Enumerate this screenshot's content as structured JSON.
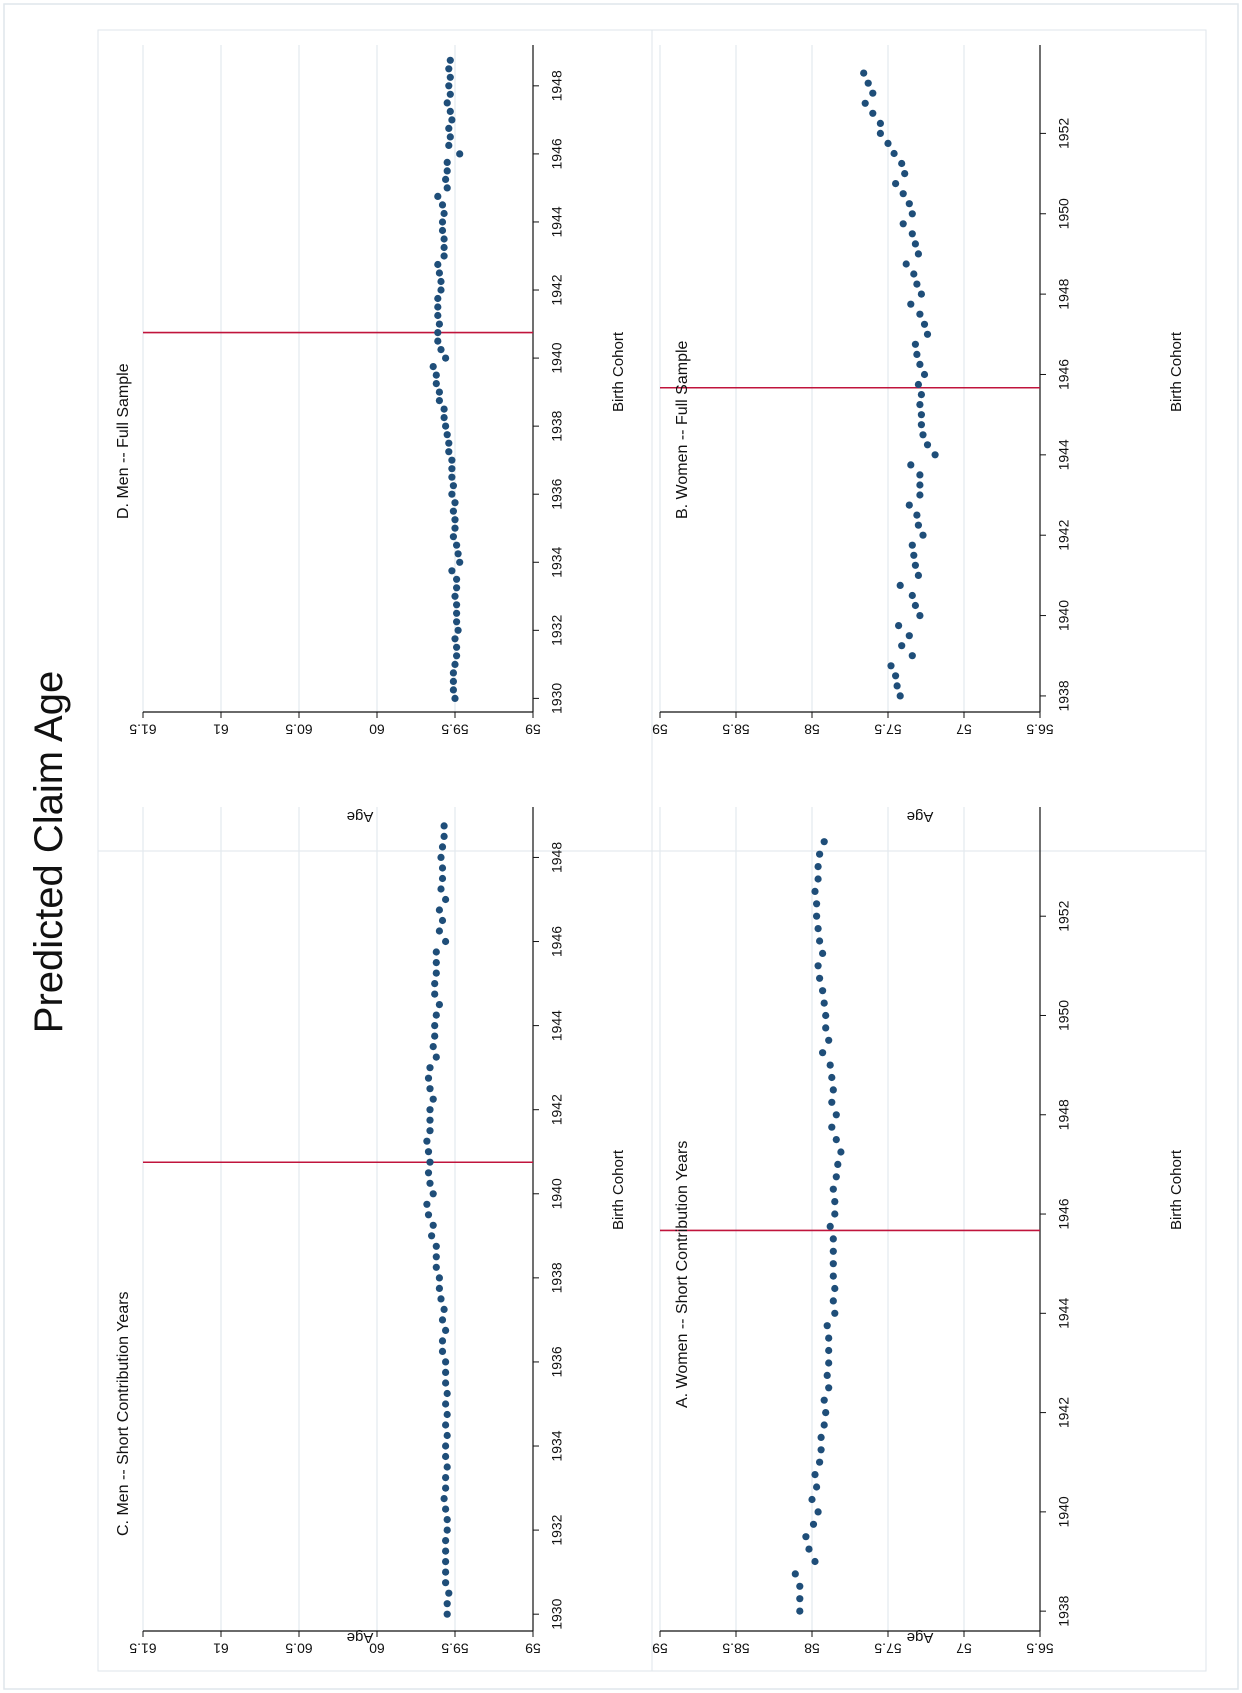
{
  "figure": {
    "title": "Predicted Claim Age",
    "colors": {
      "marker": "#1f4e79",
      "cutoff_line": "#c0143c",
      "grid": "#e3e9ee",
      "axis": "#111111",
      "frame": "#dfe6eb"
    }
  },
  "chart_data": [
    {
      "type": "scatter",
      "panel": "C",
      "title": "C. Men -- Short Contribution Years",
      "xlabel": "Birth Cohort",
      "ylabel": "Age",
      "xlim": [
        1929.6,
        1949.2
      ],
      "ylim": [
        59,
        61.5
      ],
      "xticks": [
        1930,
        1932,
        1934,
        1936,
        1938,
        1940,
        1942,
        1944,
        1946,
        1948
      ],
      "yticks": [
        59,
        59.5,
        60,
        60.5,
        61,
        61.5
      ],
      "ytick_labels": [
        "59",
        "59.5",
        "60",
        "60.5",
        "61",
        "61.5"
      ],
      "cutoff_x": 1940.75,
      "grid": true,
      "x": [
        1930.0,
        1930.25,
        1930.5,
        1930.75,
        1931.0,
        1931.25,
        1931.5,
        1931.75,
        1932.0,
        1932.25,
        1932.5,
        1932.75,
        1933.0,
        1933.25,
        1933.5,
        1933.75,
        1934.0,
        1934.25,
        1934.5,
        1934.75,
        1935.0,
        1935.25,
        1935.5,
        1935.75,
        1936.0,
        1936.25,
        1936.5,
        1936.75,
        1937.0,
        1937.25,
        1937.5,
        1937.75,
        1938.0,
        1938.25,
        1938.5,
        1938.75,
        1939.0,
        1939.25,
        1939.5,
        1939.75,
        1940.0,
        1940.25,
        1940.5,
        1940.75,
        1941.0,
        1941.25,
        1941.5,
        1941.75,
        1942.0,
        1942.25,
        1942.5,
        1942.75,
        1943.0,
        1943.25,
        1943.5,
        1943.75,
        1944.0,
        1944.25,
        1944.5,
        1944.75,
        1945.0,
        1945.25,
        1945.5,
        1945.75,
        1946.0,
        1946.25,
        1946.5,
        1946.75,
        1947.0,
        1947.25,
        1947.5,
        1947.75,
        1948.0,
        1948.25,
        1948.5,
        1948.75
      ],
      "y": [
        59.55,
        59.55,
        59.54,
        59.56,
        59.56,
        59.56,
        59.56,
        59.56,
        59.55,
        59.55,
        59.56,
        59.57,
        59.56,
        59.56,
        59.55,
        59.56,
        59.56,
        59.55,
        59.56,
        59.55,
        59.56,
        59.55,
        59.56,
        59.56,
        59.56,
        59.58,
        59.58,
        59.56,
        59.58,
        59.57,
        59.59,
        59.6,
        59.6,
        59.62,
        59.62,
        59.62,
        59.65,
        59.64,
        59.67,
        59.68,
        59.64,
        59.66,
        59.67,
        59.66,
        59.67,
        59.68,
        59.66,
        59.66,
        59.66,
        59.64,
        59.66,
        59.67,
        59.66,
        59.62,
        59.64,
        59.63,
        59.63,
        59.62,
        59.6,
        59.63,
        59.63,
        59.62,
        59.62,
        59.62,
        59.56,
        59.6,
        59.58,
        59.6,
        59.56,
        59.59,
        59.58,
        59.58,
        59.59,
        59.58,
        59.57,
        59.57
      ]
    },
    {
      "type": "scatter",
      "panel": "D",
      "title": "D. Men -- Full Sample",
      "xlabel": "Birth Cohort",
      "ylabel": "Age",
      "xlim": [
        1929.6,
        1949.2
      ],
      "ylim": [
        59,
        61.5
      ],
      "xticks": [
        1930,
        1932,
        1934,
        1936,
        1938,
        1940,
        1942,
        1944,
        1946,
        1948
      ],
      "yticks": [
        59,
        59.5,
        60,
        60.5,
        61,
        61.5
      ],
      "ytick_labels": [
        "59",
        "59.5",
        "60",
        "60.5",
        "61",
        "61.5"
      ],
      "cutoff_x": 1940.75,
      "grid": true,
      "x": [
        1930.0,
        1930.25,
        1930.5,
        1930.75,
        1931.0,
        1931.25,
        1931.5,
        1931.75,
        1932.0,
        1932.25,
        1932.5,
        1932.75,
        1933.0,
        1933.25,
        1933.5,
        1933.75,
        1934.0,
        1934.25,
        1934.5,
        1934.75,
        1935.0,
        1935.25,
        1935.5,
        1935.75,
        1936.0,
        1936.25,
        1936.5,
        1936.75,
        1937.0,
        1937.25,
        1937.5,
        1937.75,
        1938.0,
        1938.25,
        1938.5,
        1938.75,
        1939.0,
        1939.25,
        1939.5,
        1939.75,
        1940.0,
        1940.25,
        1940.5,
        1940.75,
        1941.0,
        1941.25,
        1941.5,
        1941.75,
        1942.0,
        1942.25,
        1942.5,
        1942.75,
        1943.0,
        1943.25,
        1943.5,
        1943.75,
        1944.0,
        1944.25,
        1944.5,
        1944.75,
        1945.0,
        1945.25,
        1945.5,
        1945.75,
        1946.0,
        1946.25,
        1946.5,
        1946.75,
        1947.0,
        1947.25,
        1947.5,
        1947.75,
        1948.0,
        1948.25,
        1948.5,
        1948.75
      ],
      "y": [
        59.5,
        59.51,
        59.51,
        59.51,
        59.5,
        59.49,
        59.49,
        59.5,
        59.48,
        59.49,
        59.49,
        59.49,
        59.5,
        59.49,
        59.49,
        59.52,
        59.47,
        59.48,
        59.49,
        59.51,
        59.5,
        59.5,
        59.51,
        59.5,
        59.52,
        59.51,
        59.52,
        59.52,
        59.52,
        59.54,
        59.54,
        59.55,
        59.56,
        59.57,
        59.57,
        59.6,
        59.6,
        59.62,
        59.62,
        59.64,
        59.56,
        59.59,
        59.61,
        59.61,
        59.6,
        59.61,
        59.61,
        59.61,
        59.59,
        59.59,
        59.6,
        59.61,
        59.57,
        59.57,
        59.57,
        59.58,
        59.58,
        59.57,
        59.58,
        59.61,
        59.55,
        59.56,
        59.55,
        59.55,
        59.47,
        59.54,
        59.53,
        59.54,
        59.52,
        59.53,
        59.55,
        59.53,
        59.54,
        59.53,
        59.54,
        59.53
      ]
    },
    {
      "type": "scatter",
      "panel": "A",
      "title": "A. Women -- Short Contribution Years",
      "xlabel": "Birth Cohort",
      "ylabel": "Age",
      "xlim": [
        1937.6,
        1954.2
      ],
      "ylim": [
        56.5,
        59
      ],
      "xticks": [
        1938,
        1940,
        1942,
        1944,
        1946,
        1948,
        1950,
        1952
      ],
      "yticks": [
        56.5,
        57,
        57.5,
        58,
        58.5,
        59
      ],
      "ytick_labels": [
        "56.5",
        "57",
        "57.5",
        "58",
        "58.5",
        "59"
      ],
      "cutoff_x": 1945.67,
      "grid": true,
      "x": [
        1938.0,
        1938.25,
        1938.5,
        1938.75,
        1939.0,
        1939.25,
        1939.5,
        1939.75,
        1940.0,
        1940.25,
        1940.5,
        1940.75,
        1941.0,
        1941.25,
        1941.5,
        1941.75,
        1942.0,
        1942.25,
        1942.5,
        1942.75,
        1943.0,
        1943.25,
        1943.5,
        1943.75,
        1944.0,
        1944.25,
        1944.5,
        1944.75,
        1945.0,
        1945.25,
        1945.5,
        1945.75,
        1946.0,
        1946.25,
        1946.5,
        1946.75,
        1947.0,
        1947.25,
        1947.5,
        1947.75,
        1948.0,
        1948.25,
        1948.5,
        1948.75,
        1949.0,
        1949.25,
        1949.5,
        1949.75,
        1950.0,
        1950.25,
        1950.5,
        1950.75,
        1951.0,
        1951.25,
        1951.5,
        1951.75,
        1952.0,
        1952.25,
        1952.5,
        1952.75,
        1953.0,
        1953.25,
        1953.5
      ],
      "y": [
        58.08,
        58.08,
        58.08,
        58.11,
        57.98,
        58.02,
        58.04,
        57.99,
        57.96,
        58.0,
        57.97,
        57.98,
        57.95,
        57.94,
        57.94,
        57.92,
        57.91,
        57.92,
        57.89,
        57.9,
        57.89,
        57.89,
        57.89,
        57.9,
        57.85,
        57.86,
        57.85,
        57.86,
        57.86,
        57.86,
        57.86,
        57.88,
        57.85,
        57.85,
        57.86,
        57.84,
        57.83,
        57.81,
        57.84,
        57.87,
        57.84,
        57.87,
        57.86,
        57.87,
        57.88,
        57.93,
        57.89,
        57.91,
        57.91,
        57.92,
        57.93,
        57.95,
        57.96,
        57.93,
        57.95,
        57.96,
        57.97,
        57.97,
        57.98,
        57.96,
        57.96,
        57.95,
        57.92
      ]
    },
    {
      "type": "scatter",
      "panel": "B",
      "title": "B. Women -- Full Sample",
      "xlabel": "Birth Cohort",
      "ylabel": "Age",
      "xlim": [
        1937.6,
        1954.2
      ],
      "ylim": [
        56.5,
        59
      ],
      "xticks": [
        1938,
        1940,
        1942,
        1944,
        1946,
        1948,
        1950,
        1952
      ],
      "yticks": [
        56.5,
        57,
        57.5,
        58,
        58.5,
        59
      ],
      "ytick_labels": [
        "56.5",
        "57",
        "57.5",
        "58",
        "58.5",
        "59"
      ],
      "cutoff_x": 1945.67,
      "grid": true,
      "x": [
        1938.0,
        1938.25,
        1938.5,
        1938.75,
        1939.0,
        1939.25,
        1939.5,
        1939.75,
        1940.0,
        1940.25,
        1940.5,
        1940.75,
        1941.0,
        1941.25,
        1941.5,
        1941.75,
        1942.0,
        1942.25,
        1942.5,
        1942.75,
        1943.0,
        1943.25,
        1943.5,
        1943.75,
        1944.0,
        1944.25,
        1944.5,
        1944.75,
        1945.0,
        1945.25,
        1945.5,
        1945.75,
        1946.0,
        1946.25,
        1946.5,
        1946.75,
        1947.0,
        1947.25,
        1947.5,
        1947.75,
        1948.0,
        1948.25,
        1948.5,
        1948.75,
        1949.0,
        1949.25,
        1949.5,
        1949.75,
        1950.0,
        1950.25,
        1950.5,
        1950.75,
        1951.0,
        1951.25,
        1951.5,
        1951.75,
        1952.0,
        1952.25,
        1952.5,
        1952.75,
        1953.0,
        1953.25,
        1953.5
      ],
      "y": [
        57.42,
        57.44,
        57.45,
        57.48,
        57.34,
        57.41,
        57.36,
        57.43,
        57.29,
        57.32,
        57.34,
        57.42,
        57.3,
        57.32,
        57.33,
        57.34,
        57.27,
        57.3,
        57.31,
        57.36,
        57.29,
        57.29,
        57.29,
        57.35,
        57.19,
        57.24,
        57.27,
        57.28,
        57.28,
        57.29,
        57.28,
        57.3,
        57.26,
        57.29,
        57.31,
        57.32,
        57.24,
        57.26,
        57.29,
        57.35,
        57.28,
        57.31,
        57.33,
        57.38,
        57.3,
        57.32,
        57.34,
        57.4,
        57.34,
        57.36,
        57.4,
        57.45,
        57.39,
        57.41,
        57.46,
        57.5,
        57.55,
        57.55,
        57.6,
        57.65,
        57.6,
        57.63,
        57.66
      ]
    }
  ]
}
